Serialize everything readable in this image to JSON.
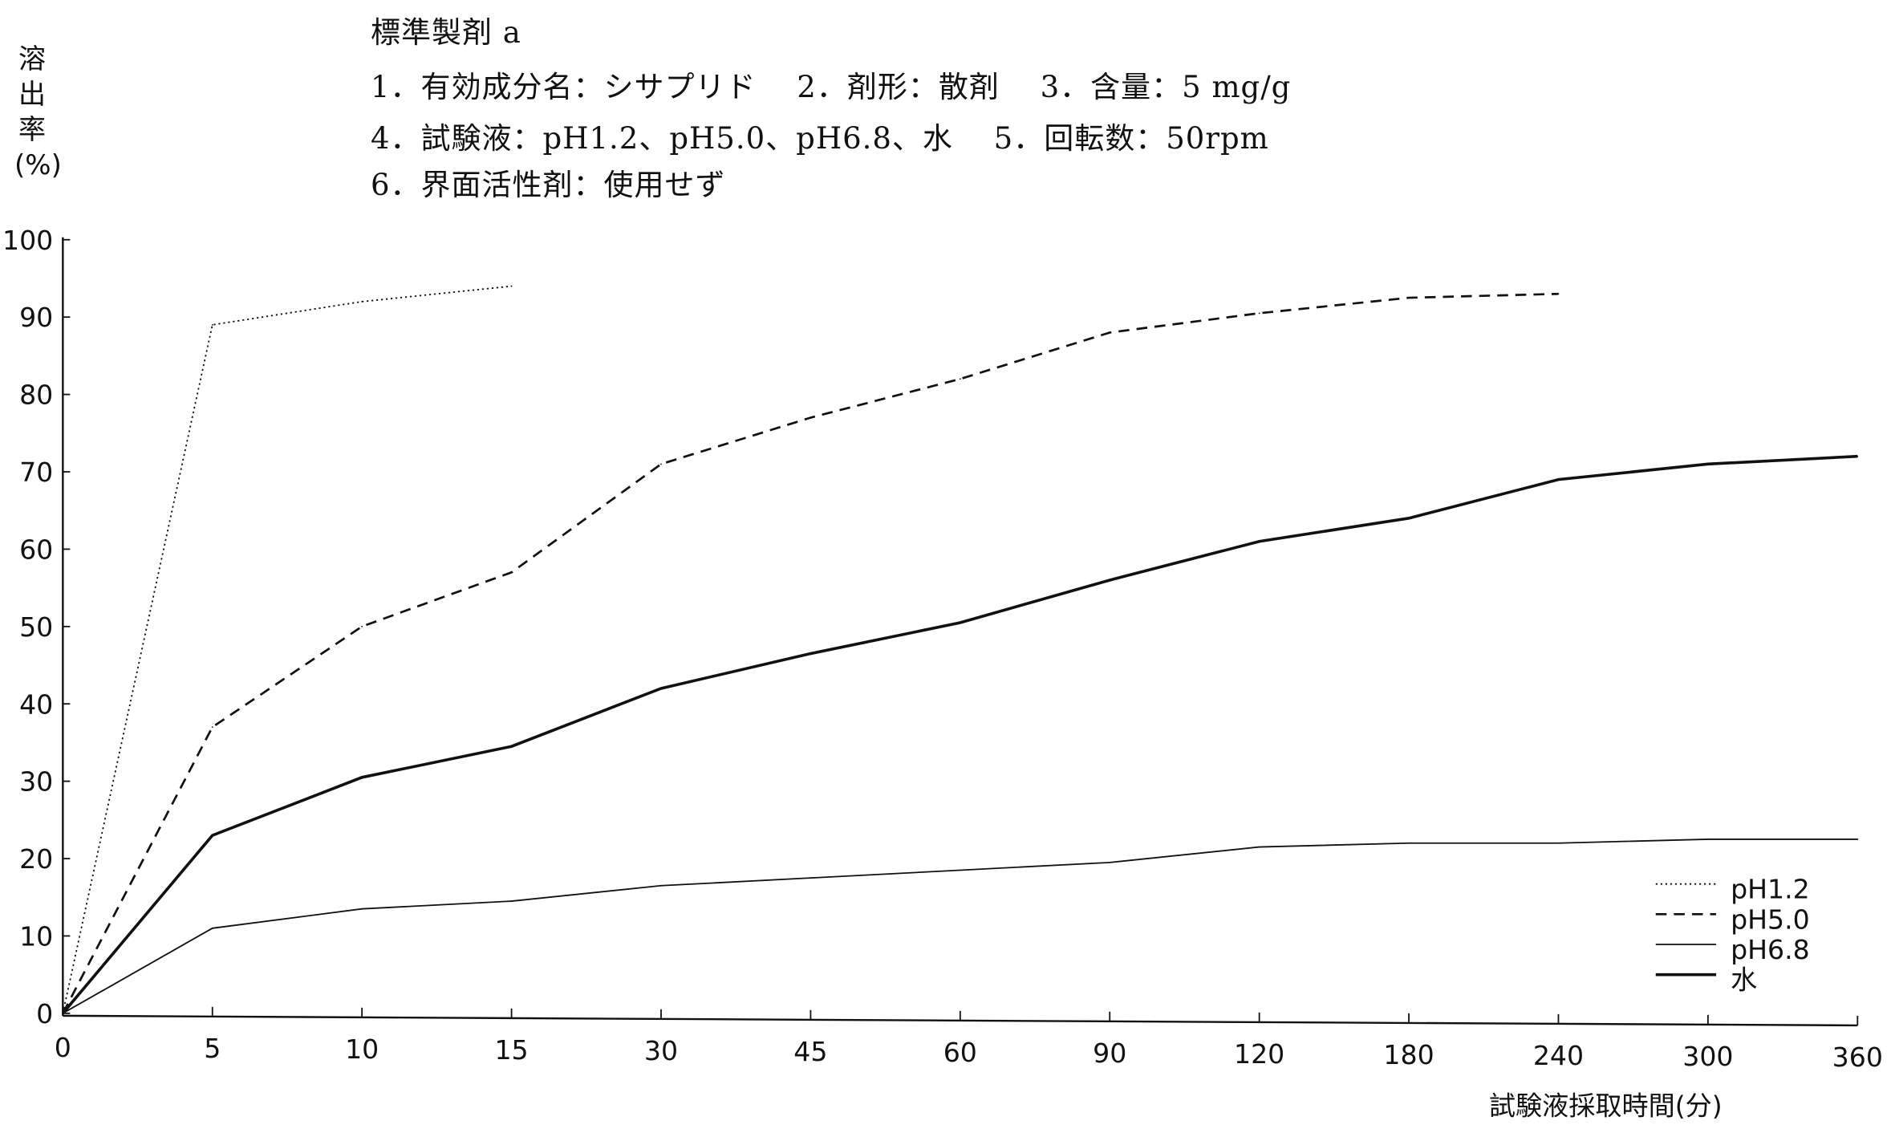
{
  "header": {
    "title": "標準製剤 a",
    "line1": "1．有効成分名：シサプリド　 2．剤形：散剤　 3．含量：5 mg/g",
    "line2": "4．試験液：pH1.2、pH5.0、pH6.8、水　 5．回転数：50rpm",
    "line3": "6．界面活性剤：使用せず"
  },
  "chart_data": {
    "type": "line",
    "title": "標準製剤 a",
    "xlabel": "試験液採取時間(分)",
    "ylabel": "溶出率(%)",
    "categories": [
      "0",
      "5",
      "10",
      "15",
      "30",
      "45",
      "60",
      "90",
      "120",
      "180",
      "240",
      "300",
      "360"
    ],
    "ylim": [
      0,
      100
    ],
    "yticks": [
      "0",
      "10",
      "20",
      "30",
      "40",
      "50",
      "60",
      "70",
      "80",
      "90",
      "100"
    ],
    "grid": false,
    "legend_position": "bottom-right",
    "series": [
      {
        "name": "pH1.2",
        "style": "dotted",
        "values": [
          0,
          89,
          92,
          94,
          null,
          null,
          null,
          null,
          null,
          null,
          null,
          null,
          null
        ]
      },
      {
        "name": "pH5.0",
        "style": "dashed",
        "values": [
          0,
          37,
          50,
          57,
          71,
          77,
          82,
          88,
          90.5,
          92.5,
          93,
          null,
          null
        ]
      },
      {
        "name": "pH6.8",
        "style": "thin",
        "values": [
          0,
          11,
          13.5,
          14.5,
          16.5,
          17.5,
          18.5,
          19.5,
          21.5,
          22,
          22,
          22.5,
          22.5
        ]
      },
      {
        "name": "水",
        "style": "thick",
        "values": [
          0,
          23,
          30.5,
          34.5,
          42,
          46.5,
          50.5,
          56,
          61,
          64,
          69,
          71,
          72
        ]
      }
    ]
  }
}
